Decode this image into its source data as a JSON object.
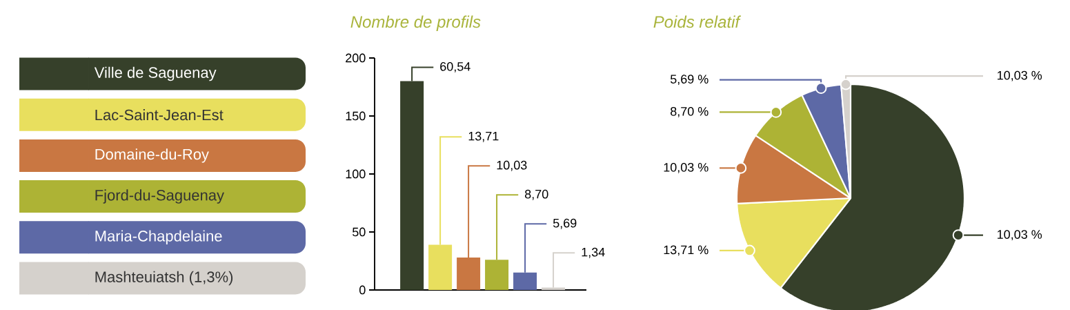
{
  "chart_data": [
    {
      "type": "bar",
      "title": "Nombre de profils",
      "categories": [
        null,
        null,
        null,
        null,
        null,
        null
      ],
      "values": [
        180,
        39,
        28,
        26,
        15,
        2
      ],
      "colors": [
        "#36402a",
        "#e8df5e",
        "#c97742",
        "#adb335",
        "#5d69a6",
        "#d5d1cc"
      ],
      "annotations": [
        "60,54",
        "13,71",
        "10,03",
        "8,70",
        "5,69",
        "1,34"
      ],
      "ylim": [
        0,
        200
      ],
      "yticks": [
        0,
        50,
        100,
        150,
        200
      ]
    },
    {
      "type": "pie",
      "title": "Poids relatif",
      "categories": [
        "Ville de Saguenay",
        "Lac-Saint-Jean-Est",
        "Domaine-du-Roy",
        "Fjord-du-Saguenay",
        "Maria-Chapdelaine",
        "Mashteuiatsh (1,3%)"
      ],
      "values": [
        60.54,
        13.71,
        10.03,
        8.7,
        5.69,
        1.34
      ],
      "colors": [
        "#36402a",
        "#e8df5e",
        "#c97742",
        "#adb335",
        "#5d69a6",
        "#d5d1cc"
      ],
      "annotations": [
        "10,03 %",
        "13,71 %",
        "10,03 %",
        "8,70 %",
        "5,69 %",
        "10,03 %"
      ],
      "legend": "left"
    }
  ]
}
